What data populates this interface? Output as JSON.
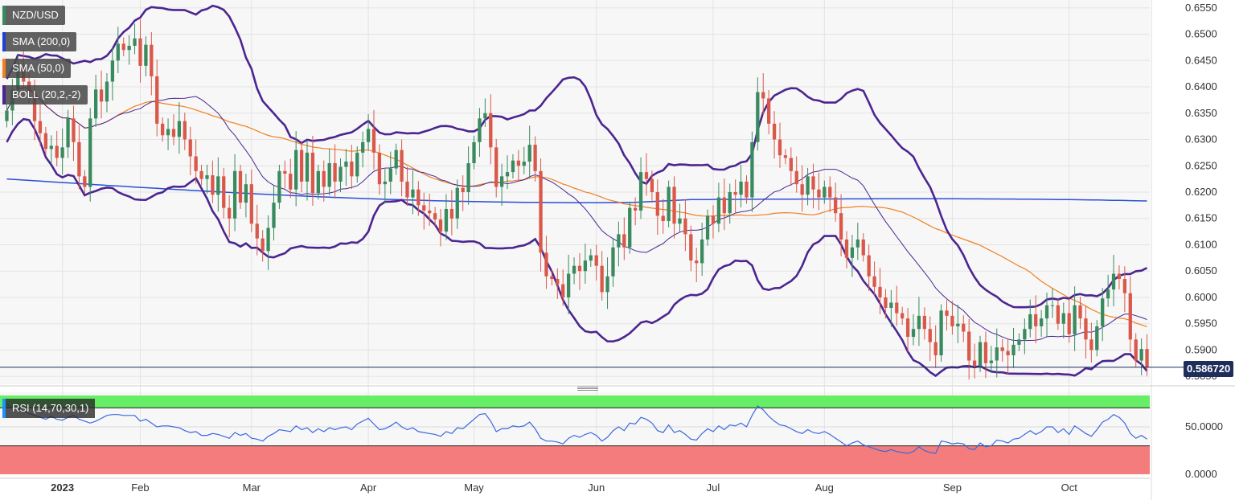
{
  "instrument": "NZD/USD",
  "indicators": [
    {
      "label": "SMA (200,0)",
      "color": "#1f3fd6"
    },
    {
      "label": "SMA (50,0)",
      "color": "#f08020"
    },
    {
      "label": "BOLL (20,2,-2)",
      "color": "#4b2590"
    }
  ],
  "last_price": "0.586720",
  "rsi_label": "RSI (14,70,30,1)",
  "colors": {
    "up_candle": "#3a8a5f",
    "down_candle": "#d9584a",
    "sma200": "#2a4fd8",
    "sma50": "#f08020",
    "boll": "#4b2590",
    "rsi_line": "#3a68e0",
    "rsi_overbought_fill": "#66ee66",
    "rsi_oversold_fill": "#f47c7c"
  },
  "chart_data": [
    {
      "type": "candlestick",
      "title": "NZD/USD",
      "ylim": [
        0.5835,
        0.6565
      ],
      "y_ticks": [
        "0.6550",
        "0.6500",
        "0.6450",
        "0.6400",
        "0.6350",
        "0.6300",
        "0.6250",
        "0.6200",
        "0.6150",
        "0.6100",
        "0.6050",
        "0.6000",
        "0.5950",
        "0.5900",
        "0.5850"
      ],
      "x_labels": [
        {
          "label": "2023",
          "index": 10
        },
        {
          "label": "Feb",
          "index": 24
        },
        {
          "label": "Mar",
          "index": 44
        },
        {
          "label": "Apr",
          "index": 65
        },
        {
          "label": "May",
          "index": 84
        },
        {
          "label": "Jun",
          "index": 106
        },
        {
          "label": "Jul",
          "index": 127
        },
        {
          "label": "Aug",
          "index": 147
        },
        {
          "label": "Sep",
          "index": 170
        },
        {
          "label": "Oct",
          "index": 191
        }
      ],
      "close": [
        0.6355,
        0.6395,
        0.6435,
        0.641,
        0.639,
        0.6335,
        0.6312,
        0.6282,
        0.6288,
        0.6265,
        0.6285,
        0.634,
        0.6295,
        0.623,
        0.621,
        0.634,
        0.6395,
        0.6372,
        0.641,
        0.645,
        0.6482,
        0.647,
        0.6478,
        0.6492,
        0.644,
        0.648,
        0.642,
        0.633,
        0.6308,
        0.632,
        0.6305,
        0.6335,
        0.63,
        0.6268,
        0.624,
        0.6225,
        0.6232,
        0.6195,
        0.623,
        0.617,
        0.615,
        0.624,
        0.618,
        0.6215,
        0.614,
        0.6112,
        0.6088,
        0.6132,
        0.618,
        0.624,
        0.6235,
        0.6205,
        0.628,
        0.622,
        0.6275,
        0.6198,
        0.624,
        0.621,
        0.6255,
        0.622,
        0.6248,
        0.6258,
        0.623,
        0.6275,
        0.6295,
        0.632,
        0.6275,
        0.6215,
        0.622,
        0.6245,
        0.628,
        0.622,
        0.619,
        0.6205,
        0.6175,
        0.6165,
        0.616,
        0.6148,
        0.6125,
        0.6168,
        0.615,
        0.6208,
        0.62,
        0.6255,
        0.6295,
        0.634,
        0.635,
        0.6285,
        0.621,
        0.623,
        0.6238,
        0.626,
        0.625,
        0.6258,
        0.629,
        0.624,
        0.6085,
        0.604,
        0.6035,
        0.6025,
        0.6,
        0.6045,
        0.606,
        0.605,
        0.607,
        0.608,
        0.606,
        0.601,
        0.604,
        0.6095,
        0.612,
        0.6095,
        0.617,
        0.6165,
        0.6238,
        0.6225,
        0.62,
        0.6155,
        0.6145,
        0.621,
        0.614,
        0.615,
        0.612,
        0.607,
        0.6065,
        0.611,
        0.6155,
        0.614,
        0.619,
        0.616,
        0.62,
        0.6195,
        0.622,
        0.619,
        0.6295,
        0.639,
        0.6378,
        0.633,
        0.63,
        0.627,
        0.6265,
        0.624,
        0.6215,
        0.6195,
        0.623,
        0.6205,
        0.619,
        0.621,
        0.619,
        0.616,
        0.611,
        0.6075,
        0.6095,
        0.611,
        0.608,
        0.604,
        0.602,
        0.6,
        0.598,
        0.599,
        0.597,
        0.596,
        0.5925,
        0.594,
        0.5965,
        0.594,
        0.5915,
        0.589,
        0.5975,
        0.5965,
        0.5945,
        0.595,
        0.5935,
        0.588,
        0.587,
        0.5915,
        0.5875,
        0.588,
        0.5905,
        0.5898,
        0.589,
        0.591,
        0.592,
        0.594,
        0.5968,
        0.5945,
        0.596,
        0.5985,
        0.5985,
        0.595,
        0.597,
        0.593,
        0.5985,
        0.596,
        0.592,
        0.59,
        0.5945,
        0.5998,
        0.6015,
        0.6045,
        0.6035,
        0.6008,
        0.592,
        0.588,
        0.5902,
        0.5867
      ],
      "rsi": {
        "ylim": [
          0,
          100
        ],
        "y_ticks": [
          "50.0000",
          "0.0000"
        ],
        "overbought": 70,
        "oversold": 30,
        "values": [
          74,
          70,
          69,
          67,
          64,
          62,
          60,
          58,
          61,
          58,
          57,
          60,
          62,
          58,
          56,
          54,
          56,
          59,
          62,
          63,
          63,
          62,
          62,
          62,
          56,
          58,
          54,
          50,
          51,
          51,
          50,
          49,
          46,
          44,
          45,
          41,
          41,
          43,
          42,
          40,
          38,
          44,
          41,
          43,
          38,
          37,
          35,
          40,
          43,
          47,
          46,
          45,
          51,
          47,
          49,
          44,
          48,
          45,
          49,
          47,
          49,
          50,
          47,
          53,
          56,
          59,
          53,
          47,
          48,
          51,
          55,
          50,
          47,
          49,
          45,
          44,
          43,
          42,
          40,
          45,
          43,
          49,
          48,
          53,
          58,
          63,
          64,
          56,
          45,
          48,
          48,
          51,
          50,
          51,
          55,
          48,
          38,
          35,
          35,
          34,
          32,
          38,
          41,
          39,
          42,
          44,
          41,
          35,
          39,
          46,
          50,
          46,
          54,
          53,
          60,
          58,
          54,
          46,
          44,
          52,
          44,
          46,
          42,
          37,
          36,
          43,
          48,
          45,
          51,
          47,
          52,
          51,
          54,
          50,
          62,
          72,
          68,
          61,
          56,
          52,
          51,
          48,
          45,
          43,
          47,
          44,
          43,
          45,
          42,
          38,
          34,
          30,
          33,
          35,
          31,
          29,
          27,
          25,
          24,
          26,
          24,
          23,
          22,
          24,
          29,
          25,
          23,
          22,
          35,
          34,
          32,
          33,
          32,
          27,
          26,
          33,
          29,
          30,
          36,
          35,
          33,
          37,
          38,
          42,
          46,
          42,
          45,
          50,
          50,
          44,
          48,
          42,
          51,
          47,
          43,
          40,
          47,
          55,
          58,
          63,
          60,
          54,
          43,
          38,
          41,
          37
        ]
      }
    }
  ]
}
